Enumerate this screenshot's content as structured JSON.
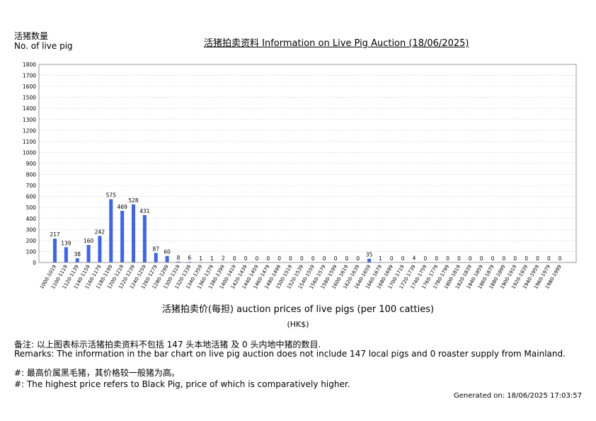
{
  "header": {
    "ylabel_zh": "活猪数量",
    "ylabel_en": "No. of live pig",
    "title": "活猪拍卖资料 Information on Live Pig Auction (18/06/2025)"
  },
  "footer": {
    "remark_zh": "备注:        以上图表标示活猪拍卖资料不包括 147 头本地活猪 及 0 头内地中猪的数目.",
    "remark_en": "Remarks: The information in the bar chart on live pig auction does not include 147 local pigs and 0 roaster supply from Mainland.",
    "note_zh": "#: 最高价属黑毛猪，其价格较一般猪为高。",
    "note_en": "#: The highest price refers to Black Pig, price of which is comparatively higher.",
    "generated": "Generated on: 18/06/2025 17:03:57"
  },
  "chart_data": {
    "type": "bar",
    "title": "活猪拍卖资料 Information on Live Pig Auction (18/06/2025)",
    "xlabel": "活猪拍卖价(每担) auction prices of live pigs (per 100 catties)",
    "xunit": "(HK$)",
    "ylabel": "活猪数量 No. of live pig",
    "ylim": [
      0,
      1800
    ],
    "yticks": [
      0,
      100,
      200,
      300,
      400,
      500,
      600,
      700,
      800,
      900,
      1000,
      1100,
      1200,
      1300,
      1400,
      1500,
      1600,
      1700,
      1800
    ],
    "grid": true,
    "bar_color": "#3c64f0",
    "categories": [
      "1000-1019",
      "1100-1119",
      "1120-1139",
      "1140-1159",
      "1160-1179",
      "1180-1199",
      "1200-1219",
      "1220-1239",
      "1240-1259",
      "1260-1279",
      "1280-1299",
      "1300-1319",
      "1320-1339",
      "1340-1359",
      "1360-1379",
      "1380-1399",
      "1400-1419",
      "1420-1439",
      "1440-1459",
      "1460-1479",
      "1480-1499",
      "1500-1519",
      "1520-1539",
      "1540-1559",
      "1560-1579",
      "1580-1599",
      "1600-1619",
      "1620-1639",
      "1640-1659",
      "1660-1679",
      "1680-1699",
      "1700-1719",
      "1720-1739",
      "1740-1759",
      "1760-1779",
      "1780-1799",
      "1800-1819",
      "1820-1839",
      "1840-1859",
      "1860-1879",
      "1880-1899",
      "1900-1919",
      "1920-1939",
      "1940-1959",
      "1960-1979",
      "1980-1999"
    ],
    "values": [
      217,
      139,
      38,
      160,
      242,
      575,
      469,
      528,
      431,
      87,
      60,
      8,
      6,
      1,
      1,
      2,
      0,
      0,
      0,
      0,
      0,
      0,
      0,
      0,
      0,
      0,
      0,
      0,
      35,
      1,
      0,
      0,
      4,
      0,
      0,
      0,
      0,
      0,
      0,
      0,
      0,
      0,
      0,
      0,
      0,
      0
    ]
  }
}
